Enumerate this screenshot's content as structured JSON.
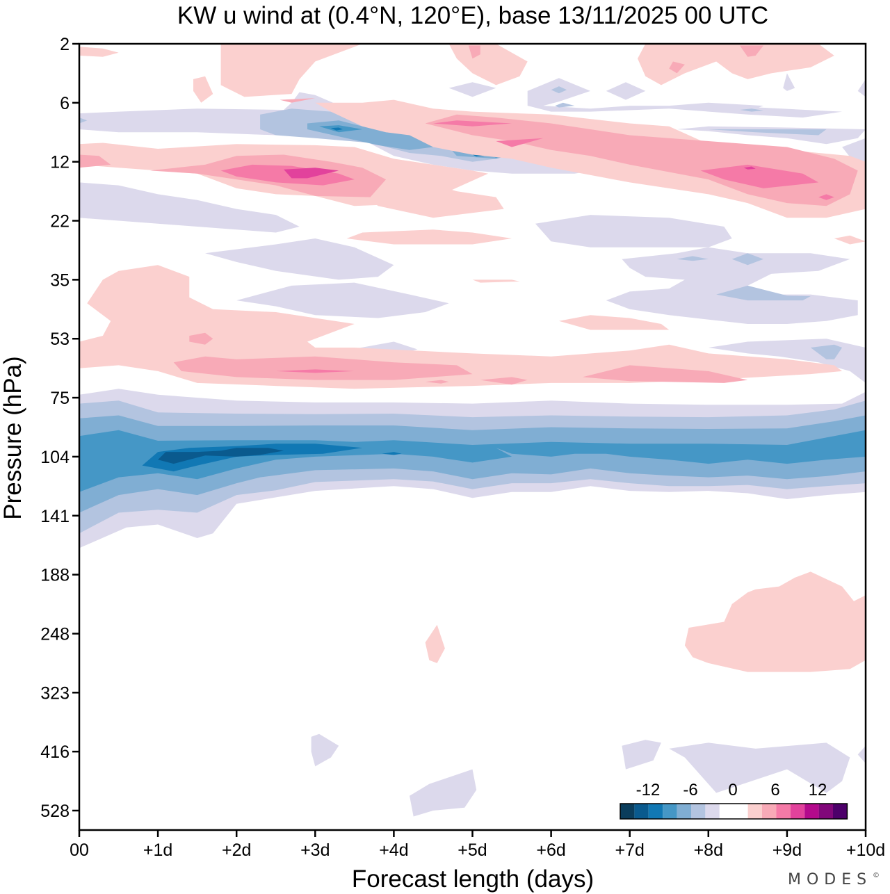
{
  "chart_data": {
    "type": "heatmap",
    "subtype": "filled-contour",
    "title": "KW u wind at (0.4°N, 120°E),  base 13/11/2025  00 UTC",
    "xlabel": "Forecast length (days)",
    "ylabel": "Pressure (hPa)",
    "x_ticks": [
      "00",
      "+1d",
      "+2d",
      "+3d",
      "+4d",
      "+5d",
      "+6d",
      "+7d",
      "+8d",
      "+9d",
      "+10d"
    ],
    "xlim": [
      0,
      10
    ],
    "y_ticks": [
      "2",
      "6",
      "12",
      "22",
      "35",
      "53",
      "75",
      "104",
      "141",
      "188",
      "248",
      "323",
      "416",
      "528"
    ],
    "y_axis": "pressure levels, top to bottom, non-uniform",
    "grid": false,
    "colorbar": {
      "placement": "bottom-right",
      "tick_labels": [
        "-12",
        "-6",
        "0",
        "6",
        "12"
      ],
      "levels": [
        -16,
        -14,
        -12,
        -10,
        -8,
        -6,
        -4,
        -2,
        2,
        4,
        6,
        8,
        10,
        12,
        14,
        16
      ],
      "colors": [
        "#0b3d5c",
        "#0a5a8e",
        "#1178b4",
        "#4597c6",
        "#80aed3",
        "#b3c4e0",
        "#dcd9ec",
        "#ffffff",
        "#ffffff",
        "#fbd0cf",
        "#f8aab7",
        "#f57aa7",
        "#e2429c",
        "#b40a8c",
        "#81077a",
        "#4d006a"
      ]
    },
    "features": [
      {
        "name": "easterly-jet-core",
        "pressure_hPa": "~90-110",
        "days": "0-10",
        "min_value_approx": -14
      },
      {
        "name": "westerly-band-12hPa",
        "pressure_hPa": "~12-15",
        "days": "1-4",
        "max_value_approx": 10
      },
      {
        "name": "westerly-band-8-15hPa",
        "pressure_hPa": "~8-15",
        "days": "4-10",
        "max_value_approx": 10
      },
      {
        "name": "easterly-band-8hPa",
        "pressure_hPa": "~7-12",
        "days": "2-6",
        "min_value_approx": -10
      },
      {
        "name": "westerly-band-65hPa",
        "pressure_hPa": "~55-75",
        "days": "0-9",
        "max_value_approx": 6
      },
      {
        "name": "westerly-patch-upper-trop",
        "pressure_hPa": "~140-250",
        "days": "8-10",
        "max_value_approx": 4
      }
    ]
  },
  "branding": {
    "logo_text": "MODES",
    "logo_mark": "©"
  }
}
